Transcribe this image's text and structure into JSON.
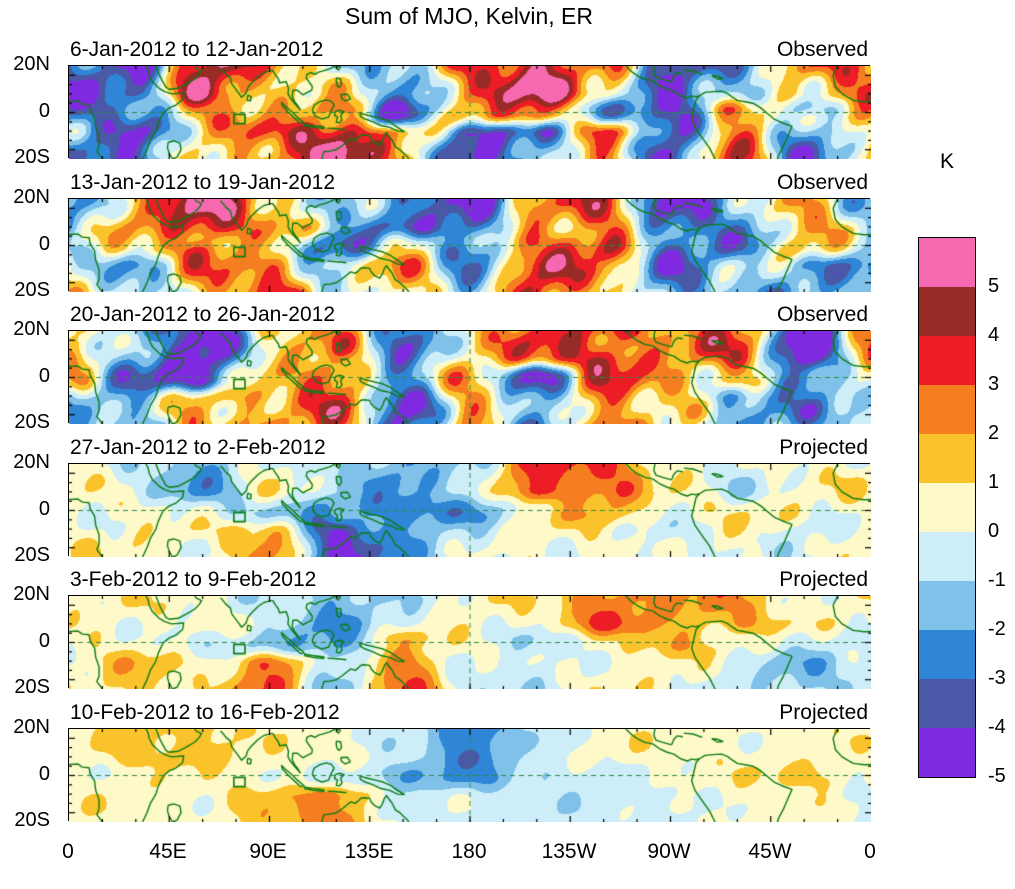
{
  "title": "Sum of MJO, Kelvin, ER",
  "colorbar": {
    "unit_label": "K",
    "tick_labels": [
      "5",
      "4",
      "3",
      "2",
      "1",
      "0",
      "-1",
      "-2",
      "-3",
      "-4",
      "-5"
    ],
    "colors": [
      "#F668B0",
      "#992B26",
      "#EC1D25",
      "#F57E20",
      "#FBC32B",
      "#FEF9C8",
      "#CDEDF8",
      "#7FC1E9",
      "#2F86D6",
      "#4A58A8",
      "#7F2AE0"
    ]
  },
  "axes": {
    "x_tick_labels": [
      "0",
      "45E",
      "90E",
      "135E",
      "180",
      "135W",
      "90W",
      "45W",
      "0"
    ],
    "y_tick_labels": [
      "20N",
      "0",
      "20S"
    ]
  },
  "chart_data": {
    "type": "heatmap",
    "subtype": "filled-contour longitude-latitude anomaly maps, 6 weekly panels",
    "title": "Sum of MJO, Kelvin, ER",
    "unit": "K",
    "contour_levels": [
      -5,
      -4,
      -3,
      -2,
      -1,
      0,
      1,
      2,
      3,
      4,
      5
    ],
    "palette_note": "fill colors top(>5K) to bottom(<-4K) given in colorbar.colors",
    "x_axis": {
      "label": "longitude",
      "range_deg": [
        0,
        360
      ],
      "tick_labels": [
        "0",
        "45E",
        "90E",
        "135E",
        "180",
        "135W",
        "90W",
        "45W",
        "0"
      ]
    },
    "y_axis": {
      "label": "latitude",
      "range_deg": [
        -25,
        25
      ],
      "tick_labels": [
        "20N",
        "0",
        "20S"
      ]
    },
    "gridlines": {
      "equator_dashed": true,
      "dateline_dashed": true
    },
    "map_overlay": "green continental coastlines; small green reference box near 75-80E just south of the equator in every panel",
    "marker_box": {
      "lon_range": [
        74,
        79
      ],
      "lat_range": [
        -6,
        -1
      ]
    },
    "sample_longitudes_deg": [
      0,
      30,
      60,
      90,
      120,
      150,
      180,
      210,
      240,
      270,
      300,
      330,
      360
    ],
    "lat_rows_deg": [
      12,
      0,
      -12
    ],
    "approximation_note": "profiles are approximate anomaly values (K) read from the figure at 30-degree longitude spacing for three latitude rows",
    "panels": [
      {
        "date_range": "6-Jan-2012 to 12-Jan-2012",
        "status": "Observed",
        "seed": 1,
        "texture": 1.35,
        "profiles": {
          "north": [
            -3,
            -4,
            5,
            2,
            0,
            -2,
            3,
            5,
            2,
            -4,
            -2,
            2,
            3
          ],
          "equator": [
            -4,
            -2,
            2,
            1,
            3,
            -5,
            2,
            4,
            -3,
            -4,
            3,
            -2,
            2
          ],
          "south": [
            -2,
            -4,
            1,
            3,
            5,
            2,
            -4,
            -3,
            3,
            -4,
            3,
            -3,
            1
          ]
        }
      },
      {
        "date_range": "13-Jan-2012 to 19-Jan-2012",
        "status": "Observed",
        "seed": 2,
        "texture": 1.3,
        "profiles": {
          "north": [
            -2,
            2,
            5,
            2,
            -1,
            -3,
            -4,
            2,
            3,
            -4,
            -2,
            2,
            -1
          ],
          "equator": [
            -1,
            1,
            3,
            1,
            -4,
            1,
            -3,
            3,
            4,
            -3,
            -3,
            2,
            -1
          ],
          "south": [
            1,
            -2,
            2,
            3,
            -1,
            2,
            -2,
            4,
            2,
            -3,
            -1,
            -2,
            -2
          ]
        }
      },
      {
        "date_range": "20-Jan-2012 to 26-Jan-2012",
        "status": "Observed",
        "seed": 3,
        "texture": 1.3,
        "profiles": {
          "north": [
            2,
            -2,
            -5,
            1,
            2,
            -3,
            1,
            3,
            4,
            2,
            3,
            -5,
            2
          ],
          "equator": [
            1,
            -3,
            -4,
            1,
            4,
            -3,
            2,
            -4,
            3,
            2,
            2,
            -4,
            1
          ],
          "south": [
            -1,
            -2,
            2,
            2,
            3,
            -4,
            2,
            -3,
            3,
            1,
            -2,
            -2,
            -1
          ]
        }
      },
      {
        "date_range": "27-Jan-2012 to 2-Feb-2012",
        "status": "Projected",
        "seed": 4,
        "texture": 0.7,
        "profiles": {
          "north": [
            0.5,
            -0.5,
            -2,
            0.5,
            -1,
            -2,
            -1,
            3.5,
            3,
            0.5,
            -0.5,
            0.5,
            0.5
          ],
          "equator": [
            0.5,
            0.5,
            -0.5,
            -1,
            -2,
            -3,
            -2,
            0.5,
            2,
            0.5,
            0.5,
            0.5,
            0.5
          ],
          "south": [
            0.5,
            0.5,
            0.5,
            2,
            -4,
            -2,
            -0.5,
            0.5,
            0.5,
            -0.5,
            0.5,
            -0.5,
            0.5
          ]
        }
      },
      {
        "date_range": "3-Feb-2012 to 9-Feb-2012",
        "status": "Projected",
        "seed": 5,
        "texture": 0.6,
        "profiles": {
          "north": [
            0.5,
            0.5,
            0.5,
            -0.5,
            -2,
            -0.5,
            0.5,
            0.5,
            3,
            2,
            2,
            0.5,
            0.5
          ],
          "equator": [
            0.5,
            0.5,
            -0.5,
            -1.5,
            -2,
            1.5,
            0.5,
            -1,
            0.5,
            2,
            0.5,
            -0.5,
            -0.5
          ],
          "south": [
            0.5,
            1.5,
            0.5,
            3,
            -1.5,
            3,
            -0.5,
            -0.5,
            0.5,
            0.5,
            -0.5,
            -1.5,
            -0.5
          ]
        }
      },
      {
        "date_range": "10-Feb-2012 to 16-Feb-2012",
        "status": "Projected",
        "seed": 6,
        "texture": 0.45,
        "profiles": {
          "north": [
            0.5,
            1.5,
            1.5,
            0.5,
            0.5,
            -0.5,
            -3,
            -0.5,
            0.5,
            0.5,
            0.5,
            0.5,
            0.5
          ],
          "equator": [
            0.5,
            0.5,
            0.5,
            0.5,
            -0.5,
            -2,
            -2,
            -1,
            -0.5,
            0.5,
            0.5,
            1.5,
            0.5
          ],
          "south": [
            0.5,
            0.5,
            0.5,
            1.5,
            2.5,
            -0.5,
            -0.5,
            -0.5,
            -0.5,
            -0.5,
            0.5,
            0.5,
            -0.5
          ]
        }
      }
    ]
  }
}
